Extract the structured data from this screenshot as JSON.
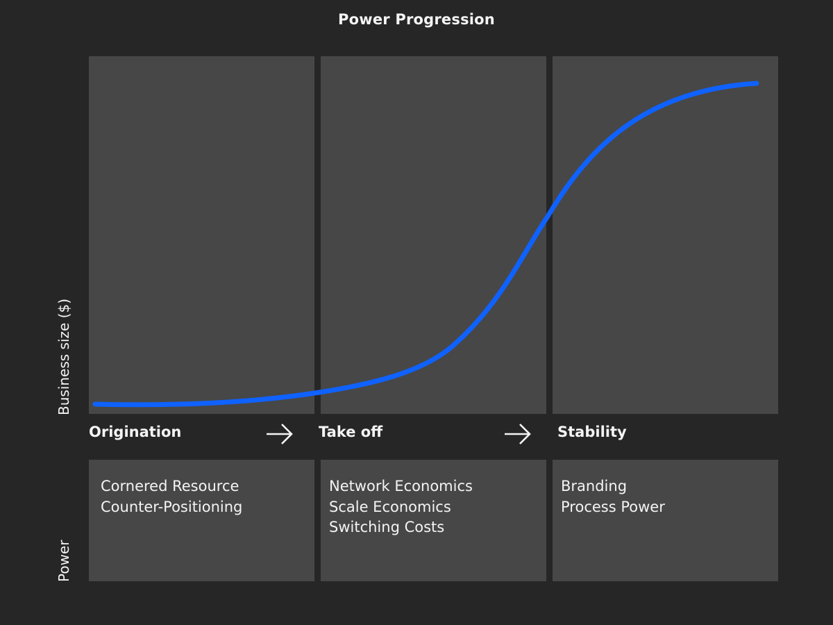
{
  "title": "Power Progression",
  "axes": {
    "y_top": "Business size ($)",
    "y_bottom": "Power"
  },
  "stages": [
    {
      "label": "Origination",
      "powers": [
        "Cornered Resource",
        "Counter-Positioning"
      ]
    },
    {
      "label": "Take off",
      "powers": [
        "Network Economics",
        "Scale Economics",
        "Switching Costs"
      ]
    },
    {
      "label": "Stability",
      "powers": [
        "Branding",
        "Process Power"
      ]
    }
  ],
  "colors": {
    "background": "#262626",
    "panel": "#474747",
    "curve": "#0f62fe",
    "text": "#f4f4f4"
  },
  "icons": {
    "transition": "arrow-right-icon"
  }
}
